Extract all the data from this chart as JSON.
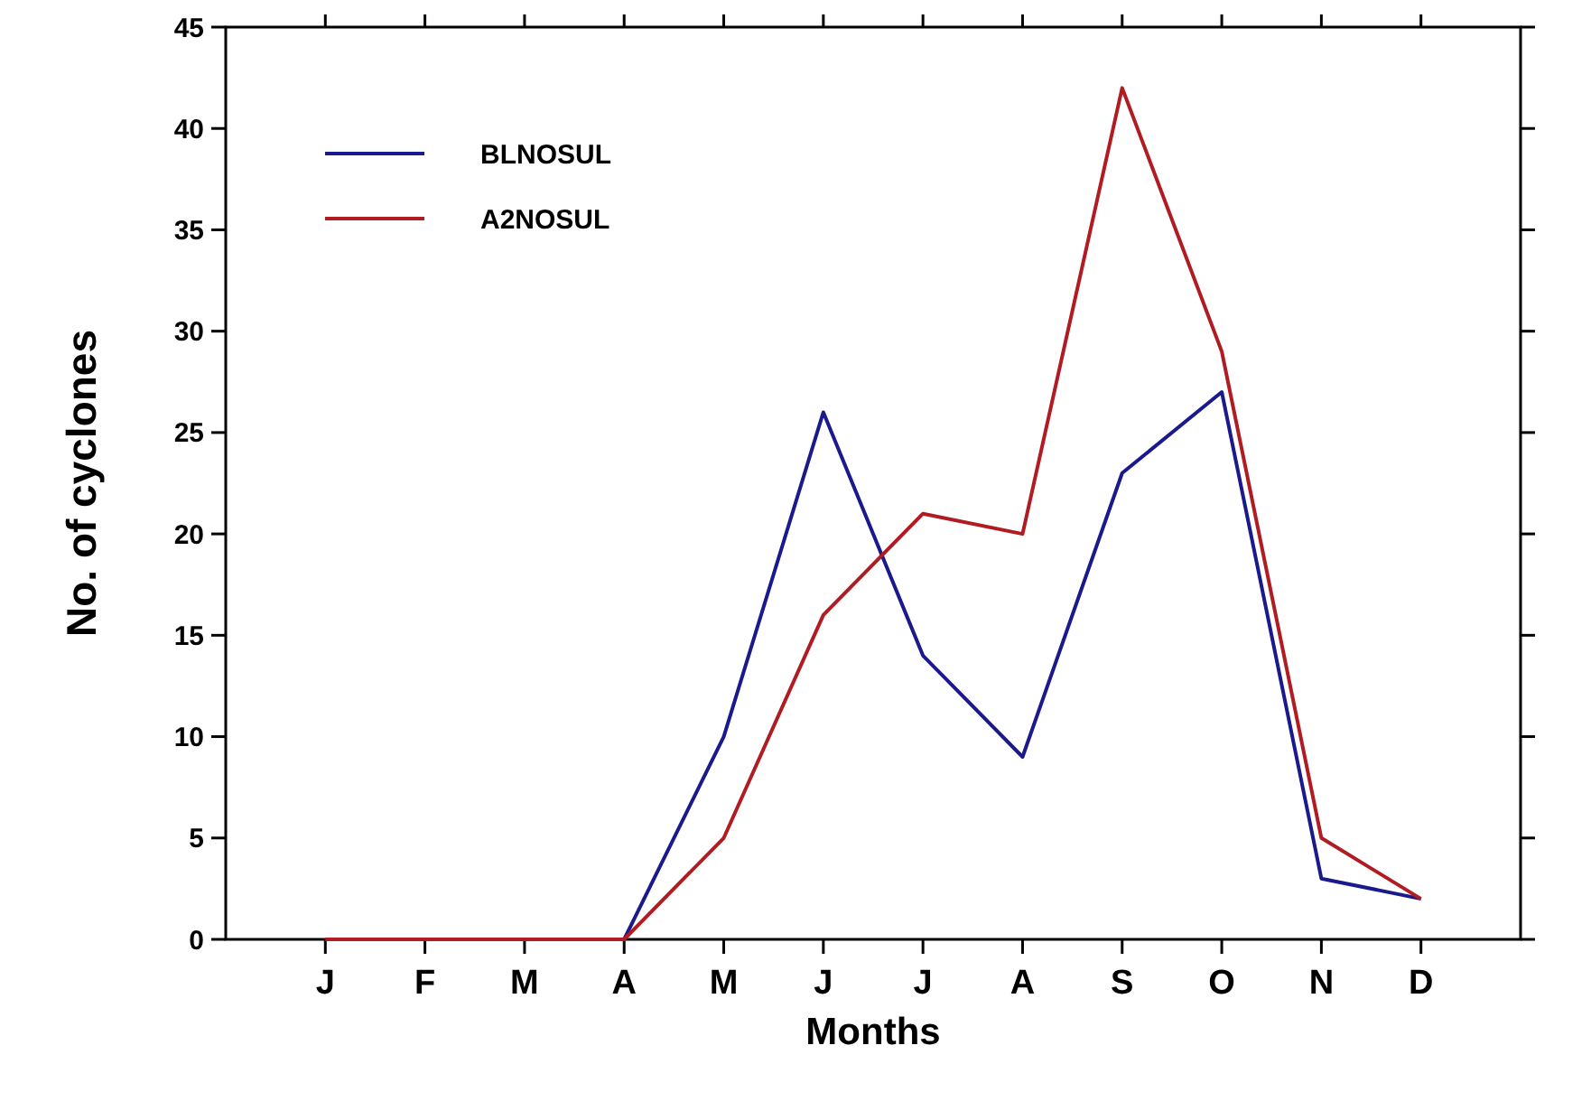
{
  "chart_data": {
    "type": "line",
    "xlabel": "Months",
    "ylabel": "No. of cyclones",
    "categories": [
      "J",
      "F",
      "M",
      "A",
      "M",
      "J",
      "J",
      "A",
      "S",
      "O",
      "N",
      "D"
    ],
    "series": [
      {
        "name": "BLNOSUL",
        "color": "#1a1a8c",
        "values": [
          null,
          null,
          null,
          0,
          10,
          26,
          14,
          9,
          23,
          27,
          3,
          2
        ]
      },
      {
        "name": "A2NOSUL",
        "color": "#b01c22",
        "values": [
          0,
          0,
          0,
          0,
          5,
          16,
          21,
          20,
          42,
          29,
          5,
          2
        ]
      }
    ],
    "ylim": [
      0,
      45
    ],
    "yticks": [
      0,
      5,
      10,
      15,
      20,
      25,
      30,
      35,
      40,
      45
    ],
    "grid": false,
    "legend": "top left",
    "marker": "none",
    "line_style": "solid"
  }
}
